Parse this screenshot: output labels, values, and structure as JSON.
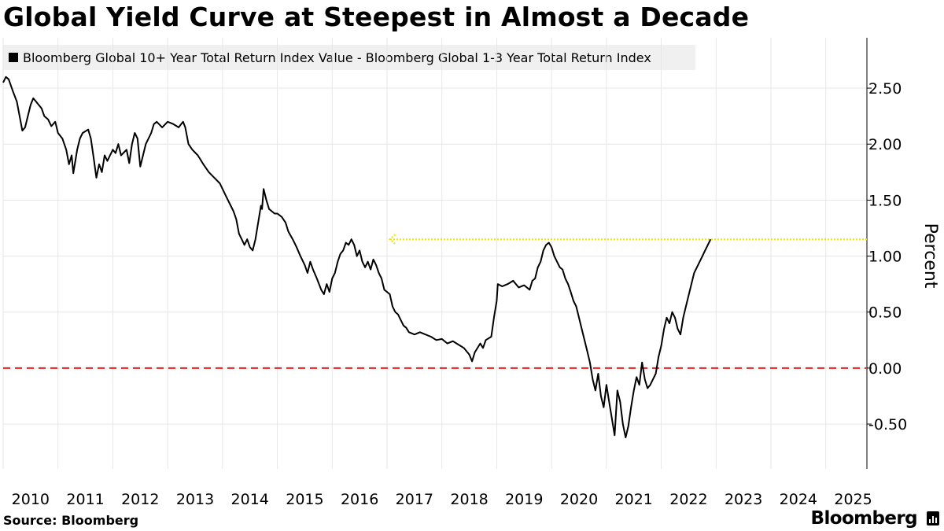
{
  "chart_data": {
    "type": "line",
    "title": "Global Yield Curve at Steepest in Almost a Decade",
    "legend": "Bloomberg Global 10+ Year Total Return Index Value - Bloomberg Global 1-3 Year Total Return Index",
    "ylabel": "Percent",
    "xlabel": "",
    "x_range": [
      2010.0,
      2025.75
    ],
    "ylim": [
      -0.9,
      2.95
    ],
    "y_ticks": [
      -0.5,
      0.0,
      0.5,
      1.0,
      1.5,
      2.0,
      2.5
    ],
    "y_tick_labels": [
      "-0.50",
      "0.00",
      "0.50",
      "1.00",
      "1.50",
      "2.00",
      "2.50"
    ],
    "x_ticks": [
      2010,
      2011,
      2012,
      2013,
      2014,
      2015,
      2016,
      2017,
      2018,
      2019,
      2020,
      2021,
      2022,
      2023,
      2024,
      2025
    ],
    "x_tick_labels": [
      "2010",
      "2011",
      "2012",
      "2013",
      "2014",
      "2015",
      "2016",
      "2017",
      "2018",
      "2019",
      "2020",
      "2021",
      "2022",
      "2023",
      "2024",
      "2025"
    ],
    "series": [
      {
        "name": "Bloomberg Global 10+ Year Total Return Index Value - Bloomberg Global 1-3 Year Total Return Index",
        "color": "#000000",
        "points": [
          [
            2010.0,
            2.55
          ],
          [
            2010.05,
            2.6
          ],
          [
            2010.1,
            2.58
          ],
          [
            2010.18,
            2.47
          ],
          [
            2010.25,
            2.38
          ],
          [
            2010.3,
            2.25
          ],
          [
            2010.35,
            2.12
          ],
          [
            2010.4,
            2.15
          ],
          [
            2010.45,
            2.25
          ],
          [
            2010.5,
            2.35
          ],
          [
            2010.55,
            2.41
          ],
          [
            2010.6,
            2.38
          ],
          [
            2010.7,
            2.32
          ],
          [
            2010.75,
            2.25
          ],
          [
            2010.82,
            2.22
          ],
          [
            2010.88,
            2.16
          ],
          [
            2010.95,
            2.2
          ],
          [
            2011.0,
            2.1
          ],
          [
            2011.08,
            2.05
          ],
          [
            2011.15,
            1.95
          ],
          [
            2011.2,
            1.82
          ],
          [
            2011.25,
            1.9
          ],
          [
            2011.28,
            1.74
          ],
          [
            2011.3,
            1.8
          ],
          [
            2011.35,
            1.95
          ],
          [
            2011.4,
            2.05
          ],
          [
            2011.45,
            2.1
          ],
          [
            2011.55,
            2.13
          ],
          [
            2011.6,
            2.05
          ],
          [
            2011.65,
            1.88
          ],
          [
            2011.7,
            1.7
          ],
          [
            2011.75,
            1.82
          ],
          [
            2011.8,
            1.75
          ],
          [
            2011.85,
            1.9
          ],
          [
            2011.9,
            1.85
          ],
          [
            2011.95,
            1.9
          ],
          [
            2012.0,
            1.95
          ],
          [
            2012.05,
            1.92
          ],
          [
            2012.1,
            2.0
          ],
          [
            2012.15,
            1.9
          ],
          [
            2012.25,
            1.95
          ],
          [
            2012.3,
            1.83
          ],
          [
            2012.35,
            2.0
          ],
          [
            2012.4,
            2.1
          ],
          [
            2012.45,
            2.05
          ],
          [
            2012.5,
            1.8
          ],
          [
            2012.55,
            1.9
          ],
          [
            2012.6,
            2.0
          ],
          [
            2012.7,
            2.1
          ],
          [
            2012.75,
            2.18
          ],
          [
            2012.8,
            2.2
          ],
          [
            2012.9,
            2.15
          ],
          [
            2013.0,
            2.2
          ],
          [
            2013.1,
            2.18
          ],
          [
            2013.2,
            2.15
          ],
          [
            2013.28,
            2.2
          ],
          [
            2013.32,
            2.15
          ],
          [
            2013.38,
            2.0
          ],
          [
            2013.45,
            1.95
          ],
          [
            2013.55,
            1.9
          ],
          [
            2013.65,
            1.82
          ],
          [
            2013.75,
            1.75
          ],
          [
            2013.85,
            1.7
          ],
          [
            2013.95,
            1.65
          ],
          [
            2014.0,
            1.6
          ],
          [
            2014.05,
            1.55
          ],
          [
            2014.1,
            1.5
          ],
          [
            2014.15,
            1.45
          ],
          [
            2014.2,
            1.4
          ],
          [
            2014.25,
            1.33
          ],
          [
            2014.3,
            1.2
          ],
          [
            2014.35,
            1.15
          ],
          [
            2014.4,
            1.1
          ],
          [
            2014.45,
            1.15
          ],
          [
            2014.5,
            1.08
          ],
          [
            2014.55,
            1.05
          ],
          [
            2014.6,
            1.15
          ],
          [
            2014.65,
            1.3
          ],
          [
            2014.7,
            1.45
          ],
          [
            2014.72,
            1.42
          ],
          [
            2014.75,
            1.6
          ],
          [
            2014.8,
            1.5
          ],
          [
            2014.85,
            1.42
          ],
          [
            2014.9,
            1.4
          ],
          [
            2014.95,
            1.38
          ],
          [
            2015.0,
            1.38
          ],
          [
            2015.08,
            1.35
          ],
          [
            2015.15,
            1.3
          ],
          [
            2015.2,
            1.22
          ],
          [
            2015.28,
            1.15
          ],
          [
            2015.35,
            1.08
          ],
          [
            2015.42,
            1.0
          ],
          [
            2015.5,
            0.92
          ],
          [
            2015.55,
            0.85
          ],
          [
            2015.6,
            0.95
          ],
          [
            2015.65,
            0.88
          ],
          [
            2015.72,
            0.8
          ],
          [
            2015.8,
            0.7
          ],
          [
            2015.85,
            0.66
          ],
          [
            2015.9,
            0.75
          ],
          [
            2015.95,
            0.68
          ],
          [
            2016.0,
            0.8
          ],
          [
            2016.05,
            0.85
          ],
          [
            2016.1,
            0.95
          ],
          [
            2016.15,
            1.02
          ],
          [
            2016.2,
            1.05
          ],
          [
            2016.25,
            1.12
          ],
          [
            2016.3,
            1.1
          ],
          [
            2016.35,
            1.15
          ],
          [
            2016.4,
            1.1
          ],
          [
            2016.45,
            1.0
          ],
          [
            2016.5,
            1.05
          ],
          [
            2016.55,
            0.95
          ],
          [
            2016.6,
            0.9
          ],
          [
            2016.65,
            0.95
          ],
          [
            2016.7,
            0.88
          ],
          [
            2016.75,
            0.97
          ],
          [
            2016.8,
            0.92
          ],
          [
            2016.85,
            0.85
          ],
          [
            2016.9,
            0.8
          ],
          [
            2016.95,
            0.7
          ],
          [
            2017.0,
            0.68
          ],
          [
            2017.05,
            0.66
          ],
          [
            2017.1,
            0.55
          ],
          [
            2017.15,
            0.5
          ],
          [
            2017.2,
            0.48
          ],
          [
            2017.25,
            0.43
          ],
          [
            2017.3,
            0.38
          ],
          [
            2017.35,
            0.36
          ],
          [
            2017.4,
            0.32
          ],
          [
            2017.5,
            0.3
          ],
          [
            2017.6,
            0.32
          ],
          [
            2017.7,
            0.3
          ],
          [
            2017.8,
            0.28
          ],
          [
            2017.9,
            0.25
          ],
          [
            2018.0,
            0.26
          ],
          [
            2018.1,
            0.22
          ],
          [
            2018.2,
            0.24
          ],
          [
            2018.3,
            0.21
          ],
          [
            2018.4,
            0.18
          ],
          [
            2018.5,
            0.12
          ],
          [
            2018.55,
            0.06
          ],
          [
            2018.6,
            0.14
          ],
          [
            2018.7,
            0.22
          ],
          [
            2018.75,
            0.18
          ],
          [
            2018.8,
            0.25
          ],
          [
            2018.9,
            0.28
          ],
          [
            2018.95,
            0.45
          ],
          [
            2019.0,
            0.6
          ],
          [
            2019.02,
            0.75
          ],
          [
            2019.1,
            0.73
          ],
          [
            2019.2,
            0.75
          ],
          [
            2019.3,
            0.78
          ],
          [
            2019.4,
            0.72
          ],
          [
            2019.5,
            0.74
          ],
          [
            2019.6,
            0.7
          ],
          [
            2019.65,
            0.78
          ],
          [
            2019.7,
            0.8
          ],
          [
            2019.75,
            0.9
          ],
          [
            2019.8,
            0.95
          ],
          [
            2019.85,
            1.05
          ],
          [
            2019.9,
            1.1
          ],
          [
            2019.95,
            1.12
          ],
          [
            2020.0,
            1.08
          ],
          [
            2020.05,
            1.0
          ],
          [
            2020.1,
            0.95
          ],
          [
            2020.15,
            0.9
          ],
          [
            2020.2,
            0.88
          ],
          [
            2020.25,
            0.8
          ],
          [
            2020.3,
            0.75
          ],
          [
            2020.35,
            0.68
          ],
          [
            2020.4,
            0.6
          ],
          [
            2020.45,
            0.55
          ],
          [
            2020.5,
            0.45
          ],
          [
            2020.55,
            0.35
          ],
          [
            2020.6,
            0.25
          ],
          [
            2020.65,
            0.15
          ],
          [
            2020.7,
            0.05
          ],
          [
            2020.75,
            -0.1
          ],
          [
            2020.8,
            -0.2
          ],
          [
            2020.85,
            -0.05
          ],
          [
            2020.9,
            -0.25
          ],
          [
            2020.95,
            -0.35
          ],
          [
            2021.0,
            -0.15
          ],
          [
            2021.05,
            -0.3
          ],
          [
            2021.1,
            -0.45
          ],
          [
            2021.15,
            -0.6
          ],
          [
            2021.2,
            -0.2
          ],
          [
            2021.25,
            -0.3
          ],
          [
            2021.3,
            -0.5
          ],
          [
            2021.35,
            -0.62
          ],
          [
            2021.4,
            -0.52
          ],
          [
            2021.45,
            -0.35
          ],
          [
            2021.5,
            -0.2
          ],
          [
            2021.55,
            -0.08
          ],
          [
            2021.6,
            -0.15
          ],
          [
            2021.65,
            0.05
          ],
          [
            2021.7,
            -0.1
          ],
          [
            2021.75,
            -0.18
          ],
          [
            2021.8,
            -0.15
          ],
          [
            2021.85,
            -0.1
          ],
          [
            2021.9,
            -0.05
          ],
          [
            2021.95,
            0.1
          ],
          [
            2022.0,
            0.2
          ],
          [
            2022.05,
            0.35
          ],
          [
            2022.1,
            0.45
          ],
          [
            2022.15,
            0.4
          ],
          [
            2022.2,
            0.5
          ],
          [
            2022.25,
            0.45
          ],
          [
            2022.3,
            0.35
          ],
          [
            2022.35,
            0.3
          ],
          [
            2022.4,
            0.45
          ],
          [
            2022.45,
            0.55
          ],
          [
            2022.5,
            0.65
          ],
          [
            2022.55,
            0.75
          ],
          [
            2022.6,
            0.85
          ],
          [
            2022.65,
            0.9
          ],
          [
            2022.7,
            0.95
          ],
          [
            2022.75,
            1.0
          ],
          [
            2022.8,
            1.05
          ],
          [
            2022.85,
            1.1
          ],
          [
            2022.9,
            1.15
          ]
        ]
      }
    ],
    "reference_lines": [
      {
        "kind": "horizontal",
        "y": 0.0,
        "style": "dashed",
        "color": "#e82020"
      },
      {
        "kind": "horizontal-arrow",
        "y": 1.15,
        "x_from": 2025.75,
        "x_to": 2017.05,
        "style": "dotted",
        "color": "#f2e200"
      }
    ]
  },
  "footer": {
    "source": "Source: Bloomberg",
    "brand": "Bloomberg"
  }
}
